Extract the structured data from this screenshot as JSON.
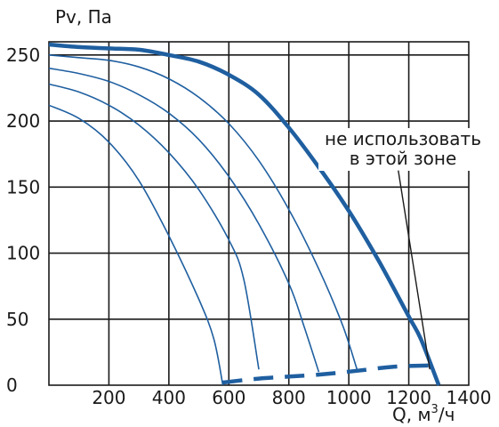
{
  "chart_data": {
    "type": "line",
    "title": "",
    "ylabel": "Pv, Па",
    "xlabel_main": "Q, м",
    "xlabel_sup": "3",
    "xlabel_tail": "/ч",
    "xlim": [
      0,
      1400
    ],
    "ylim": [
      0,
      260
    ],
    "grid": true,
    "x_ticks": [
      200,
      400,
      600,
      800,
      1000,
      1200,
      1400
    ],
    "x_tick_labels": [
      "200",
      "400",
      "600",
      "800",
      "1000",
      "1200",
      "1400"
    ],
    "y_ticks": [
      0,
      50,
      100,
      150,
      200,
      250
    ],
    "y_tick_labels": [
      "0",
      "50",
      "100",
      "150",
      "200",
      "250"
    ],
    "series": [
      {
        "style": "thick",
        "color": "#1f5fa0",
        "points": [
          [
            0,
            258
          ],
          [
            100,
            256
          ],
          [
            200,
            255
          ],
          [
            300,
            254
          ],
          [
            400,
            250
          ],
          [
            500,
            245
          ],
          [
            600,
            235
          ],
          [
            700,
            220
          ],
          [
            800,
            195
          ],
          [
            900,
            165
          ],
          [
            1000,
            132
          ],
          [
            1100,
            94
          ],
          [
            1200,
            52
          ],
          [
            1240,
            35
          ],
          [
            1300,
            0
          ]
        ]
      },
      {
        "style": "thin",
        "color": "#1f5fa0",
        "points": [
          [
            0,
            250
          ],
          [
            100,
            248
          ],
          [
            200,
            246
          ],
          [
            300,
            241
          ],
          [
            400,
            232
          ],
          [
            500,
            218
          ],
          [
            600,
            198
          ],
          [
            700,
            170
          ],
          [
            800,
            133
          ],
          [
            900,
            88
          ],
          [
            980,
            45
          ],
          [
            1030,
            10
          ]
        ]
      },
      {
        "style": "thin",
        "color": "#1f5fa0",
        "points": [
          [
            0,
            240
          ],
          [
            100,
            236
          ],
          [
            200,
            230
          ],
          [
            300,
            220
          ],
          [
            400,
            206
          ],
          [
            500,
            186
          ],
          [
            600,
            158
          ],
          [
            700,
            122
          ],
          [
            800,
            77
          ],
          [
            850,
            45
          ],
          [
            900,
            10
          ]
        ]
      },
      {
        "style": "thin",
        "color": "#1f5fa0",
        "points": [
          [
            0,
            228
          ],
          [
            100,
            222
          ],
          [
            200,
            212
          ],
          [
            300,
            197
          ],
          [
            400,
            176
          ],
          [
            500,
            148
          ],
          [
            600,
            110
          ],
          [
            650,
            80
          ],
          [
            700,
            12
          ]
        ]
      },
      {
        "style": "thin",
        "color": "#1f5fa0",
        "points": [
          [
            0,
            212
          ],
          [
            100,
            202
          ],
          [
            200,
            184
          ],
          [
            300,
            155
          ],
          [
            400,
            113
          ],
          [
            500,
            65
          ],
          [
            550,
            35
          ],
          [
            580,
            0
          ]
        ]
      },
      {
        "style": "dashed-thick",
        "color": "#1f5fa0",
        "points": [
          [
            580,
            2
          ],
          [
            700,
            5
          ],
          [
            900,
            8
          ],
          [
            1030,
            11
          ],
          [
            1150,
            14
          ],
          [
            1280,
            15
          ]
        ]
      }
    ],
    "annotations": [
      {
        "lines": [
          "не использовать",
          "в этой зоне"
        ],
        "pointer_from": [
          1165,
          168
        ],
        "pointer_to": [
          1270,
          12
        ]
      }
    ]
  }
}
